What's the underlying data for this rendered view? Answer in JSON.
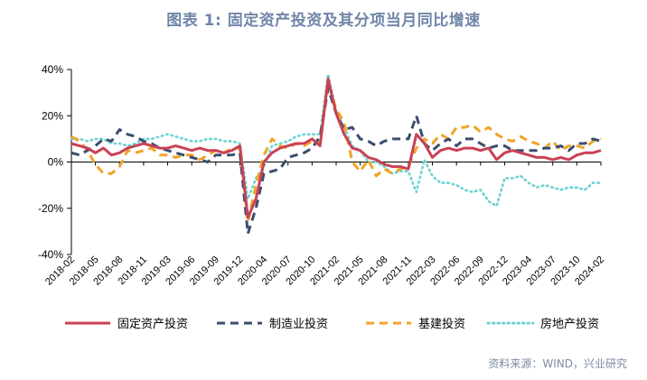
{
  "header": {
    "title": "图表 1:   固定资产投资及其分项当月同比增速"
  },
  "footer": {
    "source": "资料来源：WIND，兴业研究"
  },
  "colors": {
    "fixed": "#c94155",
    "manufacturing": "#3b4e6e",
    "infrastructure": "#f0a428",
    "realestate": "#6cd3d3"
  },
  "chart_data": {
    "type": "line",
    "title": "图表 1:   固定资产投资及其分项当月同比增速",
    "ylim": [
      -40,
      40
    ],
    "y_ticks": [
      "40%",
      "20%",
      "0%",
      "-20%",
      "-40%"
    ],
    "x_tick_labels": [
      "2018-02",
      "2018-05",
      "2018-08",
      "2018-11",
      "2019-03",
      "2019-06",
      "2019-09",
      "2019-12",
      "2020-04",
      "2020-07",
      "2020-10",
      "2021-02",
      "2021-05",
      "2021-08",
      "2021-11",
      "2022-03",
      "2022-06",
      "2022-09",
      "2022-12",
      "2023-04",
      "2023-07",
      "2023-10",
      "2024-02"
    ],
    "x": [
      "2018-02",
      "2018-03",
      "2018-04",
      "2018-05",
      "2018-06",
      "2018-07",
      "2018-08",
      "2018-09",
      "2018-10",
      "2018-11",
      "2018-12",
      "2019-02",
      "2019-03",
      "2019-04",
      "2019-05",
      "2019-06",
      "2019-07",
      "2019-08",
      "2019-09",
      "2019-10",
      "2019-11",
      "2019-12",
      "2020-02",
      "2020-03",
      "2020-04",
      "2020-05",
      "2020-06",
      "2020-07",
      "2020-08",
      "2020-09",
      "2020-10",
      "2020-11",
      "2020-12",
      "2021-02",
      "2021-03",
      "2021-04",
      "2021-05",
      "2021-06",
      "2021-07",
      "2021-08",
      "2021-09",
      "2021-10",
      "2021-11",
      "2021-12",
      "2022-02",
      "2022-03",
      "2022-04",
      "2022-05",
      "2022-06",
      "2022-07",
      "2022-08",
      "2022-09",
      "2022-10",
      "2022-11",
      "2022-12",
      "2023-02",
      "2023-03",
      "2023-04",
      "2023-05",
      "2023-06",
      "2023-07",
      "2023-08",
      "2023-09",
      "2023-10",
      "2023-11",
      "2023-12",
      "2024-02"
    ],
    "series": [
      {
        "name": "固定资产投资",
        "style": "solid",
        "color": "#c94155",
        "values": [
          8,
          7,
          6,
          4,
          6,
          3,
          4,
          6,
          7,
          8,
          7,
          6,
          6,
          7,
          6,
          5,
          6,
          5,
          5,
          4,
          5,
          7,
          -24,
          -16,
          0,
          4,
          6,
          7,
          8,
          8,
          10,
          7,
          36,
          21,
          12,
          6,
          5,
          2,
          1,
          -1,
          -2,
          -2,
          -3,
          12,
          8,
          2,
          5,
          6,
          5,
          6,
          6,
          5,
          6,
          1,
          4,
          5,
          4,
          3,
          2,
          2,
          1,
          2,
          1,
          3,
          4,
          4,
          5
        ]
      },
      {
        "name": "制造业投资",
        "style": "dashed",
        "color": "#3b4e6e",
        "values": [
          4,
          3,
          5,
          7,
          10,
          9,
          14,
          12,
          11,
          9,
          8,
          6,
          5,
          4,
          3,
          2,
          1,
          0,
          3,
          3,
          3,
          4,
          -31,
          -20,
          -5,
          -4,
          -3,
          2,
          3,
          4,
          6,
          11,
          32,
          21,
          14,
          15,
          10,
          9,
          7,
          9,
          10,
          10,
          10,
          20,
          8,
          5,
          8,
          10,
          7,
          10,
          10,
          8,
          6,
          7,
          7,
          5,
          5,
          5,
          5,
          6,
          6,
          7,
          5,
          8,
          8,
          10,
          9
        ]
      },
      {
        "name": "基建投资",
        "style": "dashed",
        "color": "#f0a428",
        "values": [
          11,
          9,
          5,
          -1,
          -5,
          -5,
          -2,
          5,
          4,
          5,
          6,
          3,
          3,
          2,
          3,
          3,
          1,
          3,
          5,
          4,
          6,
          6,
          -26,
          -10,
          3,
          10,
          7,
          6,
          8,
          7,
          9,
          8,
          34,
          23,
          17,
          0,
          -4,
          1,
          -6,
          -3,
          -5,
          -3,
          -2,
          6,
          10,
          8,
          12,
          10,
          15,
          15,
          16,
          13,
          15,
          12,
          10,
          9,
          11,
          9,
          8,
          6,
          9,
          5,
          7,
          7,
          6,
          9,
          10
        ]
      },
      {
        "name": "房地产投资",
        "style": "dotted",
        "color": "#6cd3d3",
        "values": [
          10,
          10,
          9,
          10,
          10,
          8,
          8,
          7,
          8,
          10,
          10,
          11,
          12,
          11,
          10,
          9,
          9,
          10,
          10,
          9,
          9,
          8,
          -16,
          -7,
          -2,
          7,
          8,
          9,
          11,
          12,
          12,
          12,
          38,
          22,
          15,
          7,
          5,
          0,
          0,
          -2,
          -5,
          -4,
          -4,
          -13,
          1,
          -6,
          -9,
          -9,
          -10,
          -12,
          -13,
          -12,
          -17,
          -19,
          -7,
          -7,
          -6,
          -9,
          -11,
          -10,
          -11,
          -12,
          -11,
          -11,
          -12,
          -9,
          -9
        ]
      }
    ],
    "legend_position": "bottom",
    "grid": false
  }
}
